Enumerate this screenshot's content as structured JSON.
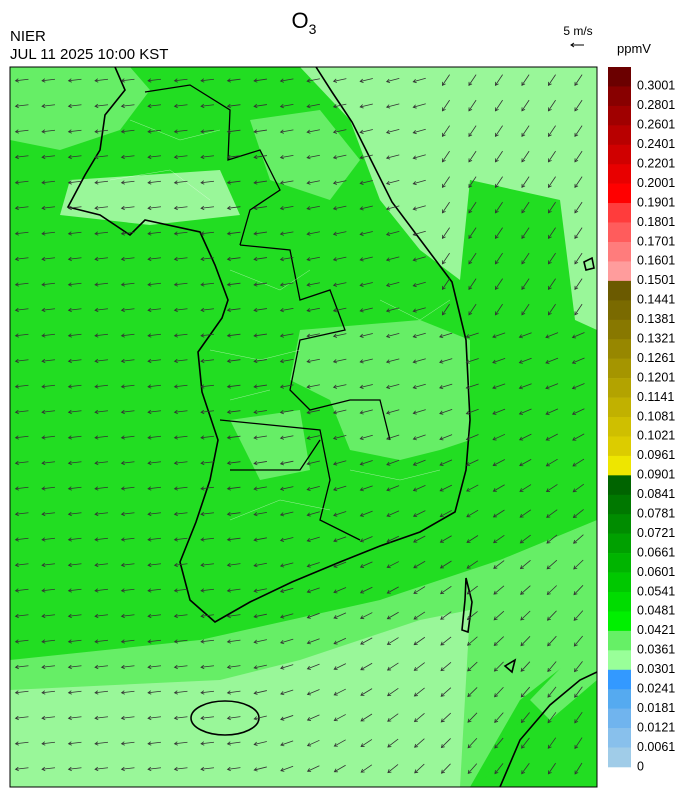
{
  "header": {
    "title": {
      "base": "O",
      "sub": "3"
    },
    "source": "NIER",
    "datetime": "JUL 11 2025 10:00 KST",
    "wind_reference": "5 m/s"
  },
  "colorbar": {
    "unit": "ppmV",
    "levels": [
      0.3001,
      0.2801,
      0.2601,
      0.2401,
      0.2201,
      0.2001,
      0.1901,
      0.1801,
      0.1701,
      0.1601,
      0.1501,
      0.1441,
      0.1381,
      0.1321,
      0.1261,
      0.1201,
      0.1141,
      0.1081,
      0.1021,
      0.0961,
      0.0901,
      0.0841,
      0.0781,
      0.0721,
      0.0661,
      0.0601,
      0.0541,
      0.0481,
      0.0421,
      0.0361,
      0.0301,
      0.0241,
      0.0181,
      0.0121,
      0.0061,
      0
    ],
    "colors": [
      "#6b0000",
      "#880000",
      "#a00000",
      "#b80000",
      "#d00000",
      "#e80000",
      "#ff0000",
      "#ff3c3c",
      "#ff5c5c",
      "#ff7c7c",
      "#ff9c9c",
      "#6b5a00",
      "#7a6a00",
      "#887800",
      "#978700",
      "#a59500",
      "#b3a300",
      "#c1b100",
      "#cfbf00",
      "#dccc00",
      "#eee600",
      "#006400",
      "#007800",
      "#008c00",
      "#00a000",
      "#00b400",
      "#00c800",
      "#00dc00",
      "#00f000",
      "#66f066",
      "#99ff99",
      "#3399ff",
      "#55aaf0",
      "#70b4ee",
      "#88c0ec",
      "#a0cce8"
    ]
  }
}
